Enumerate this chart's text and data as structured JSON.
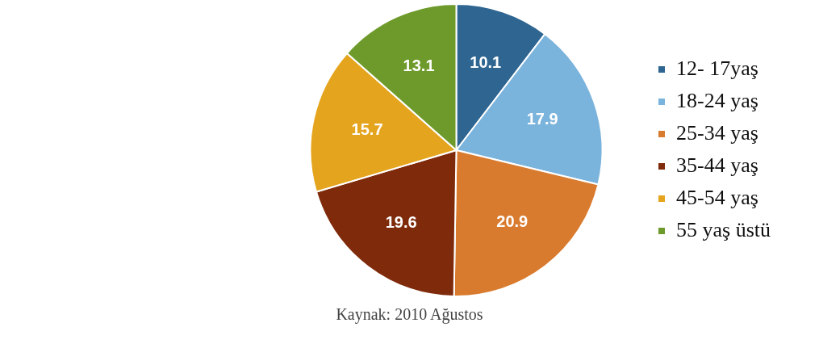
{
  "chart_data": {
    "type": "pie",
    "categories": [
      "12- 17yaş",
      "18-24 yaş",
      "25-34 yaş",
      "35-44 yaş",
      "45-54 yaş",
      "55 yaş üstü"
    ],
    "values": [
      10.1,
      17.9,
      20.9,
      19.6,
      15.7,
      13.1
    ],
    "colors": [
      "#2e6591",
      "#7ab3dc",
      "#d97b2e",
      "#7f2a0a",
      "#e5a41d",
      "#6e9a2b"
    ],
    "data_labels": true,
    "legend": "right",
    "annotations": [
      "Kaynak: 2010 Ağustos"
    ]
  }
}
